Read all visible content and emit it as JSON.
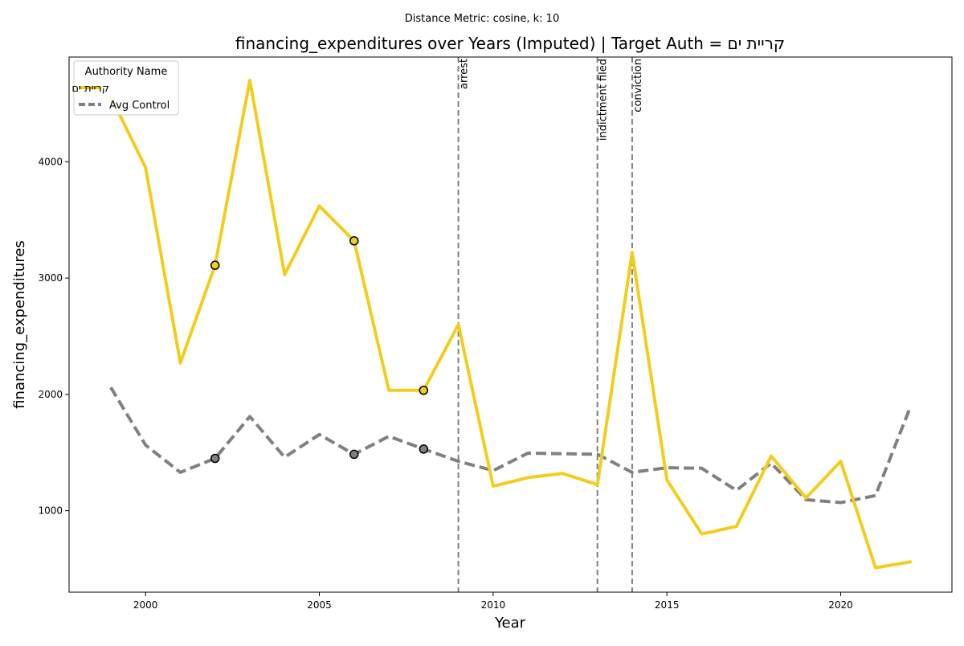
{
  "chart_data": {
    "type": "line",
    "suptitle": "Distance Metric: cosine, k: 10",
    "title": "financing_expenditures over Years (Imputed) | Target Auth = קריית ים",
    "xlabel": "Year",
    "ylabel": "financing_expenditures",
    "xlim": [
      1997.8,
      2023.2
    ],
    "ylim": [
      300,
      4900
    ],
    "xticks": [
      2000,
      2005,
      2010,
      2015,
      2020
    ],
    "yticks": [
      1000,
      2000,
      3000,
      4000
    ],
    "legend": {
      "title": "Authority Name",
      "placement": "top-left"
    },
    "x": [
      1999,
      2000,
      2001,
      2002,
      2003,
      2004,
      2005,
      2006,
      2007,
      2008,
      2009,
      2010,
      2011,
      2012,
      2013,
      2014,
      2015,
      2016,
      2017,
      2018,
      2019,
      2020,
      2021,
      2022
    ],
    "series": [
      {
        "name": "קריית ים",
        "color": "#f2cd1e",
        "style": "solid",
        "values": [
          4560,
          3950,
          2270,
          3110,
          4700,
          3030,
          3620,
          3320,
          2035,
          2035,
          2600,
          1210,
          1285,
          1320,
          1225,
          3220,
          1265,
          800,
          865,
          1470,
          1110,
          1425,
          510,
          560
        ],
        "imputed_years": [
          2002,
          2006,
          2008
        ]
      },
      {
        "name": "Avg Control",
        "color": "#808080",
        "style": "dashed",
        "values": [
          2060,
          1565,
          1330,
          1450,
          1810,
          1460,
          1655,
          1485,
          1640,
          1530,
          1425,
          1345,
          1495,
          1490,
          1485,
          1330,
          1370,
          1365,
          1175,
          1410,
          1095,
          1070,
          1130,
          1890
        ],
        "imputed_years": [
          2002,
          2006,
          2008
        ]
      }
    ],
    "events": [
      {
        "year": 2009,
        "label": "arrest"
      },
      {
        "year": 2013,
        "label": "indictment filed"
      },
      {
        "year": 2014,
        "label": "conviction"
      }
    ]
  }
}
